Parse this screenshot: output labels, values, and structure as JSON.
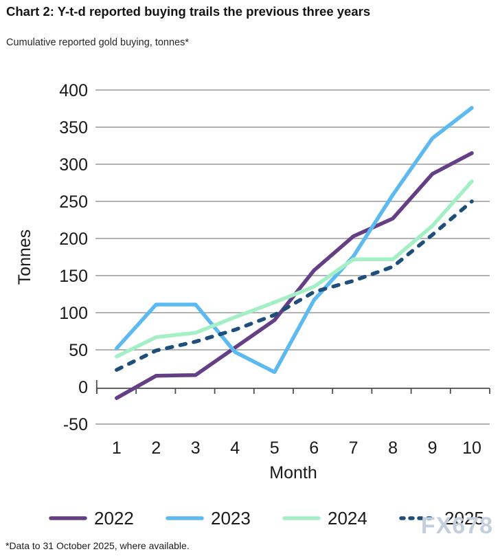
{
  "title": "Chart 2: Y-t-d reported buying trails the previous three years",
  "subtitle": "Cumulative reported gold buying, tonnes*",
  "footnote": "*Data to 31 October 2025, where available.",
  "watermark": "FX678",
  "colors": {
    "gridline": "#b3b3b3",
    "axis": "#4d4d4d",
    "text": "#1a1a1a",
    "watermark": "#c3cfdd",
    "series_2022": "#653f85",
    "series_2023": "#5cbaf0",
    "series_2024": "#a5efc6",
    "series_2025": "#1e4e79"
  },
  "chart_data": {
    "type": "line",
    "title": "Chart 2: Y-t-d reported buying trails the previous three years",
    "subtitle": "Cumulative reported gold buying, tonnes*",
    "x": [
      1,
      2,
      3,
      4,
      5,
      6,
      7,
      8,
      9,
      10
    ],
    "xlabel": "Month",
    "ylabel": "Tonnes",
    "ylim": [
      -50,
      400
    ],
    "ytick_step": 50,
    "grid": "horizontal",
    "legend_position": "bottom",
    "series": [
      {
        "name": "2022",
        "color": "#653f85",
        "style": "solid",
        "values": [
          -15,
          15,
          16,
          53,
          90,
          157,
          203,
          227,
          287,
          315
        ]
      },
      {
        "name": "2023",
        "color": "#5cbaf0",
        "style": "solid",
        "values": [
          52,
          111,
          111,
          47,
          20,
          117,
          176,
          259,
          335,
          376
        ]
      },
      {
        "name": "2024",
        "color": "#a5efc6",
        "style": "solid",
        "values": [
          41,
          67,
          73,
          94,
          114,
          135,
          172,
          172,
          217,
          277
        ]
      },
      {
        "name": "2025",
        "color": "#1e4e79",
        "style": "dashed",
        "values": [
          23,
          49,
          61,
          77,
          97,
          128,
          143,
          162,
          205,
          250
        ]
      }
    ]
  }
}
